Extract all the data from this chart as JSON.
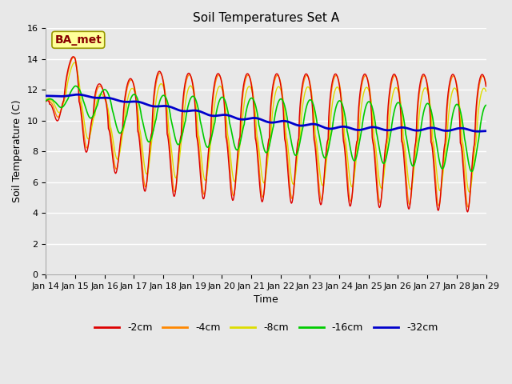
{
  "title": "Soil Temperatures Set A",
  "xlabel": "Time",
  "ylabel": "Soil Temperature (C)",
  "ylim": [
    0,
    16
  ],
  "yticks": [
    0,
    2,
    4,
    6,
    8,
    10,
    12,
    14,
    16
  ],
  "x_tick_labels": [
    "Jan 14",
    "Jan 15",
    "Jan 16",
    "Jan 17",
    "Jan 18",
    "Jan 19",
    "Jan 20",
    "Jan 21",
    "Jan 22",
    "Jan 23",
    "Jan 24",
    "Jan 25",
    "Jan 26",
    "Jan 27",
    "Jan 28",
    "Jan 29"
  ],
  "legend_labels": [
    "-2cm",
    "-4cm",
    "-8cm",
    "-16cm",
    "-32cm"
  ],
  "line_colors": [
    "#dd0000",
    "#ff8800",
    "#dddd00",
    "#00cc00",
    "#0000cc"
  ],
  "annotation_text": "BA_met",
  "annotation_bbox_facecolor": "#ffff99",
  "annotation_bbox_edgecolor": "#999900",
  "annotation_text_color": "#880000",
  "fig_facecolor": "#e8e8e8",
  "plot_facecolor": "#e8e8e8",
  "grid_color": "#ffffff",
  "title_fontsize": 11,
  "axis_label_fontsize": 9,
  "tick_fontsize": 8,
  "legend_fontsize": 9
}
